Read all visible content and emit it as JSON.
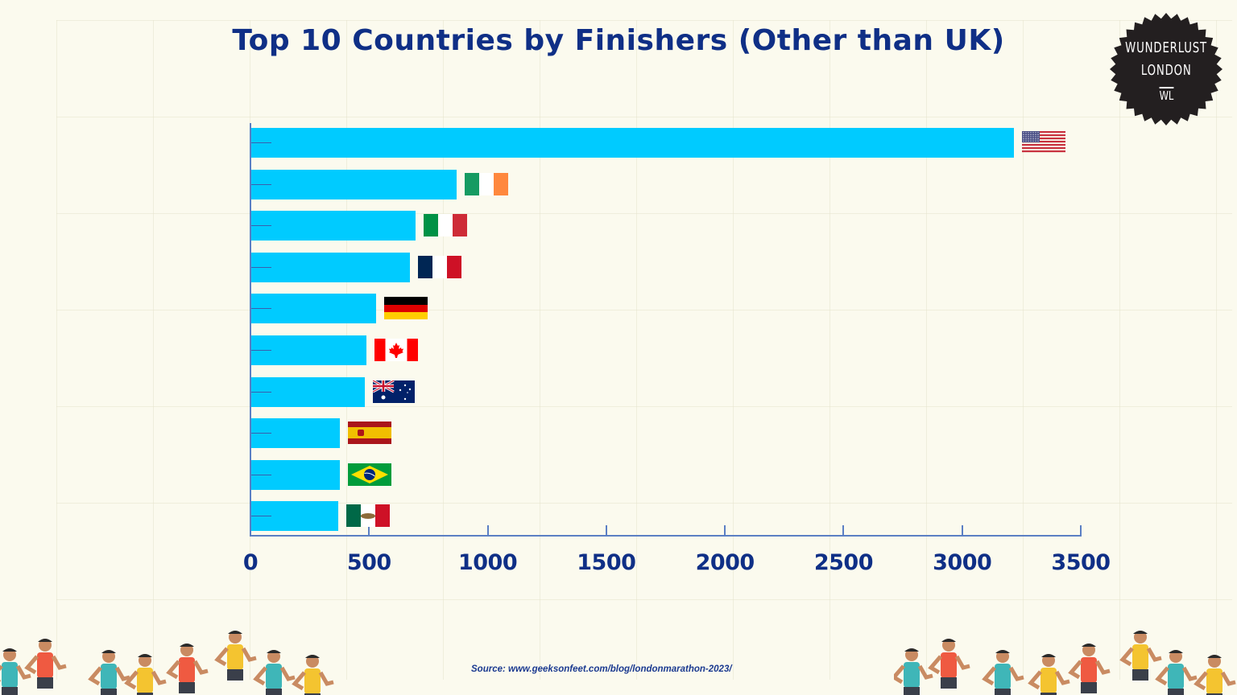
{
  "title": "Top 10 Countries by Finishers (Other than UK)",
  "logo": {
    "line1": "WUNDERLUST",
    "line2": "LONDON",
    "line3": "WL"
  },
  "source": "Source: www.geeksonfeet.com/blog/londonmarathon-2023/",
  "colors": {
    "bar": "#00cbff",
    "text": "#0f2f86",
    "axis": "#5b7fc4",
    "background": "#fbfaee"
  },
  "chart_data": {
    "type": "bar",
    "orientation": "horizontal",
    "title": "Top 10 Countries by Finishers (Other than UK)",
    "xlabel": "",
    "ylabel": "",
    "categories": [
      "USA",
      "Ireland",
      "Italy",
      "France",
      "Germany",
      "Canada",
      "Australia",
      "Spain",
      "Brazil",
      "Mexico"
    ],
    "values": [
      3215,
      866,
      693,
      669,
      526,
      485,
      480,
      373,
      373,
      367
    ],
    "xlim": [
      0,
      3500
    ],
    "xticks": [
      "0",
      "500",
      "1000",
      "1500",
      "2000",
      "2500",
      "3000",
      "3500"
    ],
    "grid": false,
    "legend": "none",
    "annotations": [
      "country flag icon at end of each bar"
    ],
    "source": "Source: www.geeksonfeet.com/blog/londonmarathon-2023/"
  },
  "xticks": [
    "0",
    "500",
    "1000",
    "1500",
    "2000",
    "2500",
    "3000",
    "3500"
  ],
  "rows": [
    {
      "label": "USA",
      "flag": "usa-flag-icon"
    },
    {
      "label": "Ireland",
      "flag": "ireland-flag-icon"
    },
    {
      "label": "Italy",
      "flag": "italy-flag-icon"
    },
    {
      "label": "France",
      "flag": "france-flag-icon"
    },
    {
      "label": "Germany",
      "flag": "germany-flag-icon"
    },
    {
      "label": "Canada",
      "flag": "canada-flag-icon"
    },
    {
      "label": "Australia",
      "flag": "australia-flag-icon"
    },
    {
      "label": "Spain",
      "flag": "spain-flag-icon"
    },
    {
      "label": "Brazil",
      "flag": "brazil-flag-icon"
    },
    {
      "label": "Mexico",
      "flag": "mexico-flag-icon"
    }
  ]
}
